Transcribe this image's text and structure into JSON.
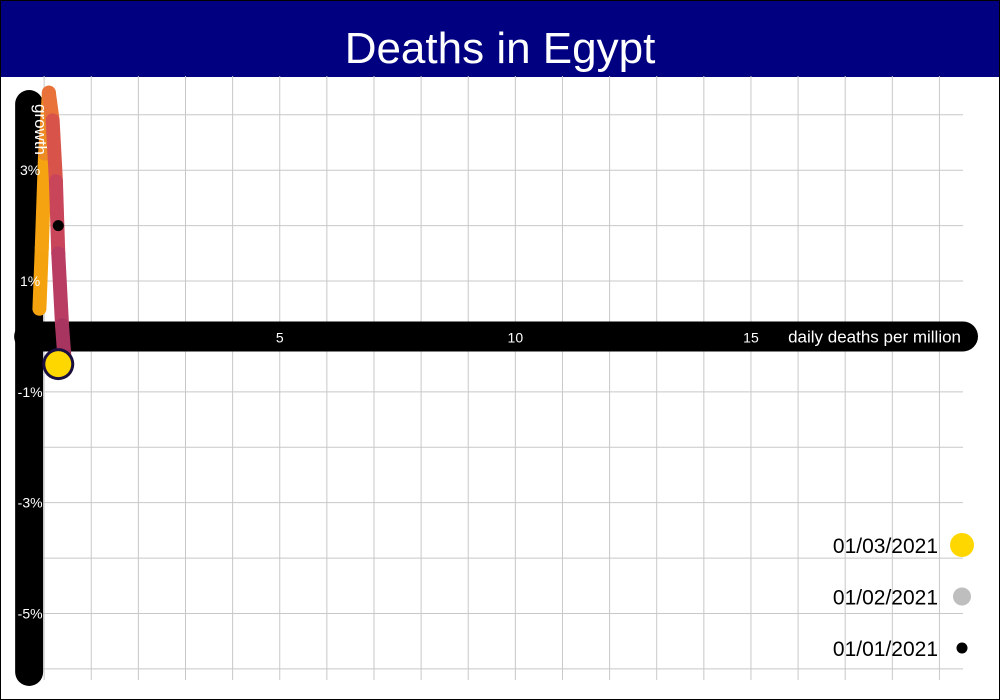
{
  "title": "Deaths in Egypt",
  "colors": {
    "title_bg": "#000080",
    "grid": "#c8c8c8",
    "axis": "#000000",
    "marker_border": "#1a1040"
  },
  "chart_data": {
    "type": "scatter",
    "title": "Deaths in Egypt",
    "xlabel": "daily deaths per million",
    "ylabel": "growth",
    "xlim": [
      -0.3,
      19.5
    ],
    "ylim": [
      -6.2,
      4.7
    ],
    "x_ticks": [
      5,
      10,
      15
    ],
    "x_tick_labels": [
      "5",
      "10",
      "15"
    ],
    "y_ticks": [
      3,
      1,
      -1,
      -3,
      -5
    ],
    "y_tick_labels": [
      "3%",
      "1%",
      "-1%",
      "-3%",
      "-5%"
    ],
    "grid": true,
    "trail": {
      "x": [
        -0.1,
        -0.05,
        0.02,
        0.1,
        0.18,
        0.25,
        0.3,
        0.38,
        0.45
      ],
      "y": [
        0.5,
        1.6,
        3.3,
        4.4,
        3.9,
        2.8,
        1.5,
        0.2,
        -0.6
      ],
      "colors": [
        "#f5a20f",
        "#f6a312",
        "#ec8a23",
        "#e8723a",
        "#d8544a",
        "#c9455a",
        "#b93c62",
        "#a83560",
        "#a83560"
      ]
    },
    "points": [
      {
        "label": "01/03/2021",
        "x": 0.3,
        "y": -0.5,
        "color": "#ffd700"
      },
      {
        "label": "01/02/2021",
        "x": 0.2,
        "y": 1.0,
        "color": "#bebebe"
      },
      {
        "label": "01/01/2021",
        "x": 0.3,
        "y": 2.0,
        "color": "#000000"
      }
    ],
    "legend": {
      "position": "bottom-right",
      "entries": [
        {
          "label": "01/03/2021",
          "color": "#ffd700",
          "size": "large"
        },
        {
          "label": "01/02/2021",
          "color": "#bebebe",
          "size": "medium"
        },
        {
          "label": "01/01/2021",
          "color": "#000000",
          "size": "small"
        }
      ]
    }
  }
}
